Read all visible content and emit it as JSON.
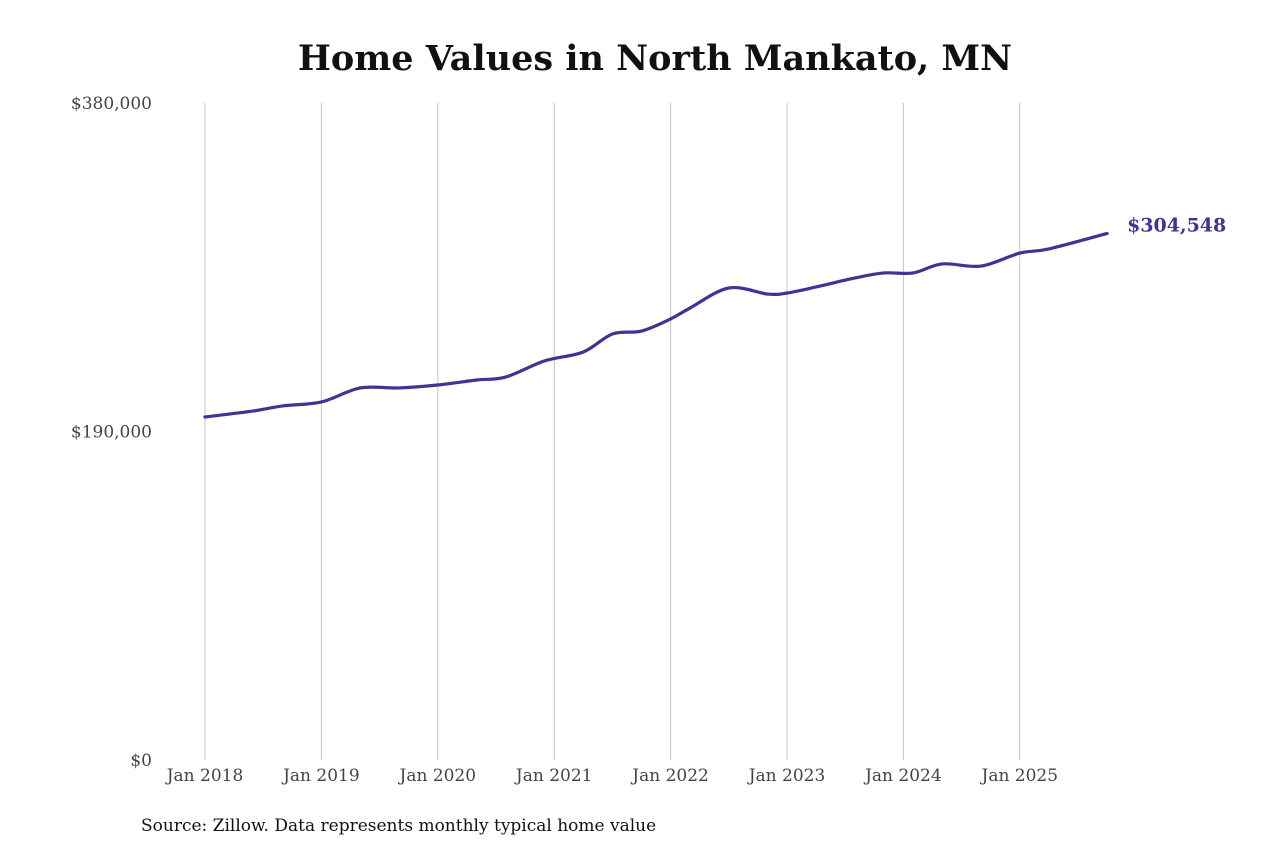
{
  "chart_data": {
    "type": "line",
    "title": "Home Values in North Mankato, MN",
    "source": "Source: Zillow. Data represents monthly typical home value",
    "xlabel": "",
    "ylabel": "",
    "ylim": [
      0,
      380000
    ],
    "yticks": [
      0,
      190000,
      380000
    ],
    "ytick_labels": [
      "$0",
      "$190,000",
      "$380,000"
    ],
    "xticks": [
      "2018-01",
      "2019-01",
      "2020-01",
      "2021-01",
      "2022-01",
      "2023-01",
      "2024-01",
      "2025-01"
    ],
    "xtick_labels": [
      "Jan 2018",
      "Jan 2019",
      "Jan 2020",
      "Jan 2021",
      "Jan 2022",
      "Jan 2023",
      "Jan 2024",
      "Jan 2025"
    ],
    "grid": "vertical",
    "legend": "none",
    "series": [
      {
        "name": "Typical home value",
        "color": "#3b3593",
        "x": [
          "2018-01",
          "2018-06",
          "2018-09",
          "2019-01",
          "2019-05",
          "2019-09",
          "2020-01",
          "2020-05",
          "2020-08",
          "2020-12",
          "2021-04",
          "2021-07",
          "2021-10",
          "2022-01",
          "2022-03",
          "2022-07",
          "2022-11",
          "2023-01",
          "2023-04",
          "2023-08",
          "2023-11",
          "2024-02",
          "2024-05",
          "2024-09",
          "2025-01",
          "2025-04",
          "2025-10"
        ],
        "values": [
          198400,
          201900,
          204800,
          207100,
          215200,
          215200,
          216900,
          219800,
          221500,
          230800,
          236000,
          246400,
          248100,
          255100,
          261400,
          273000,
          269500,
          270100,
          273600,
          278800,
          281700,
          281700,
          286900,
          285700,
          293200,
          295600,
          304548
        ]
      }
    ],
    "annotations": [
      {
        "text": "$304,548",
        "series": 0,
        "point": "last"
      }
    ]
  }
}
